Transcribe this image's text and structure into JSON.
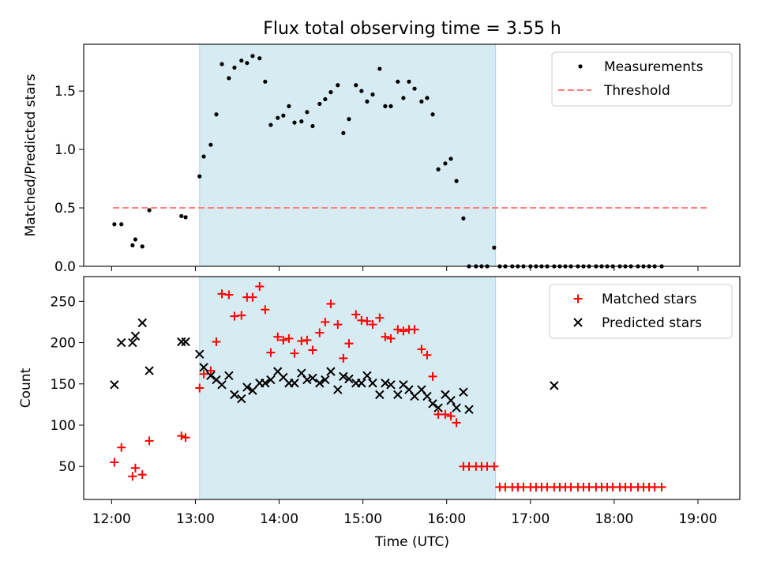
{
  "figure": {
    "title": "Flux total observing time = 3.55 h",
    "xlabel": "Time (UTC)",
    "x_ticks": [
      "12:00",
      "13:00",
      "14:00",
      "15:00",
      "16:00",
      "17:00",
      "18:00",
      "19:00"
    ],
    "highlight_color": "#add8e6",
    "highlight_x": [
      "13:03",
      "16:35"
    ]
  },
  "chart_data": [
    {
      "type": "scatter",
      "ylabel": "Matched/Predicted stars",
      "xlim": [
        "11:40",
        "19:30"
      ],
      "ylim": [
        0,
        1.9
      ],
      "y_ticks": [
        0.0,
        0.5,
        1.0,
        1.5
      ],
      "legend_position": "top-right",
      "series": [
        {
          "name": "Measurements",
          "kind": "dot",
          "color": "#000000",
          "points": [
            [
              "12:02",
              0.36
            ],
            [
              "12:07",
              0.36
            ],
            [
              "12:15",
              0.18
            ],
            [
              "12:17",
              0.23
            ],
            [
              "12:22",
              0.17
            ],
            [
              "12:27",
              0.48
            ],
            [
              "12:50",
              0.43
            ],
            [
              "12:53",
              0.42
            ],
            [
              "13:03",
              0.77
            ],
            [
              "13:06",
              0.94
            ],
            [
              "13:11",
              1.04
            ],
            [
              "13:15",
              1.3
            ],
            [
              "13:19",
              1.73
            ],
            [
              "13:24",
              1.61
            ],
            [
              "13:28",
              1.7
            ],
            [
              "13:33",
              1.76
            ],
            [
              "13:37",
              1.74
            ],
            [
              "13:41",
              1.8
            ],
            [
              "13:46",
              1.78
            ],
            [
              "13:50",
              1.58
            ],
            [
              "13:54",
              1.21
            ],
            [
              "13:59",
              1.27
            ],
            [
              "14:03",
              1.29
            ],
            [
              "14:07",
              1.37
            ],
            [
              "14:11",
              1.23
            ],
            [
              "14:16",
              1.24
            ],
            [
              "14:20",
              1.32
            ],
            [
              "14:24",
              1.2
            ],
            [
              "14:29",
              1.39
            ],
            [
              "14:33",
              1.43
            ],
            [
              "14:37",
              1.49
            ],
            [
              "14:42",
              1.55
            ],
            [
              "14:46",
              1.14
            ],
            [
              "14:50",
              1.26
            ],
            [
              "14:55",
              1.55
            ],
            [
              "14:59",
              1.5
            ],
            [
              "15:03",
              1.41
            ],
            [
              "15:07",
              1.47
            ],
            [
              "15:12",
              1.69
            ],
            [
              "15:16",
              1.37
            ],
            [
              "15:20",
              1.37
            ],
            [
              "15:25",
              1.58
            ],
            [
              "15:29",
              1.44
            ],
            [
              "15:33",
              1.58
            ],
            [
              "15:37",
              1.52
            ],
            [
              "15:42",
              1.41
            ],
            [
              "15:46",
              1.44
            ],
            [
              "15:50",
              1.3
            ],
            [
              "15:54",
              0.83
            ],
            [
              "15:59",
              0.88
            ],
            [
              "16:03",
              0.92
            ],
            [
              "16:07",
              0.73
            ],
            [
              "16:12",
              0.41
            ],
            [
              "16:16",
              0.0
            ],
            [
              "16:21",
              0.0
            ],
            [
              "16:25",
              0.0
            ],
            [
              "16:29",
              0.0
            ],
            [
              "16:34",
              0.16
            ],
            [
              "16:38",
              0.0
            ],
            [
              "16:42",
              0.0
            ],
            [
              "16:47",
              0.0
            ],
            [
              "16:51",
              0.0
            ],
            [
              "16:55",
              0.0
            ],
            [
              "17:00",
              0.0
            ],
            [
              "17:04",
              0.0
            ],
            [
              "17:08",
              0.0
            ],
            [
              "17:12",
              0.0
            ],
            [
              "17:17",
              0.0
            ],
            [
              "17:21",
              0.0
            ],
            [
              "17:25",
              0.0
            ],
            [
              "17:29",
              0.0
            ],
            [
              "17:34",
              0.0
            ],
            [
              "17:38",
              0.0
            ],
            [
              "17:42",
              0.0
            ],
            [
              "17:47",
              0.0
            ],
            [
              "17:51",
              0.0
            ],
            [
              "17:55",
              0.0
            ],
            [
              "17:59",
              0.0
            ],
            [
              "18:04",
              0.0
            ],
            [
              "18:08",
              0.0
            ],
            [
              "18:12",
              0.0
            ],
            [
              "18:17",
              0.0
            ],
            [
              "18:21",
              0.0
            ],
            [
              "18:25",
              0.0
            ],
            [
              "18:29",
              0.0
            ],
            [
              "18:34",
              0.0
            ]
          ]
        },
        {
          "name": "Threshold",
          "kind": "dashed-line",
          "color": "#ff7f7f",
          "points": [
            [
              "12:01",
              0.5
            ],
            [
              "19:08",
              0.5
            ]
          ]
        }
      ]
    },
    {
      "type": "scatter",
      "ylabel": "Count",
      "xlim": [
        "11:40",
        "19:30"
      ],
      "ylim": [
        10,
        280
      ],
      "y_ticks": [
        50,
        100,
        150,
        200,
        250
      ],
      "legend_position": "top-right",
      "series": [
        {
          "name": "Matched stars",
          "kind": "plus",
          "color": "#ff0000",
          "points": [
            [
              "12:02",
              55
            ],
            [
              "12:07",
              73
            ],
            [
              "12:15",
              38
            ],
            [
              "12:17",
              48
            ],
            [
              "12:22",
              40
            ],
            [
              "12:27",
              81
            ],
            [
              "12:50",
              87
            ],
            [
              "12:53",
              85
            ],
            [
              "13:03",
              145
            ],
            [
              "13:06",
              162
            ],
            [
              "13:11",
              166
            ],
            [
              "13:15",
              201
            ],
            [
              "13:19",
              259
            ],
            [
              "13:24",
              258
            ],
            [
              "13:28",
              232
            ],
            [
              "13:33",
              233
            ],
            [
              "13:37",
              255
            ],
            [
              "13:41",
              255
            ],
            [
              "13:46",
              268
            ],
            [
              "13:50",
              240
            ],
            [
              "13:54",
              188
            ],
            [
              "13:59",
              207
            ],
            [
              "14:03",
              203
            ],
            [
              "14:07",
              205
            ],
            [
              "14:11",
              187
            ],
            [
              "14:16",
              202
            ],
            [
              "14:20",
              203
            ],
            [
              "14:24",
              191
            ],
            [
              "14:29",
              212
            ],
            [
              "14:33",
              225
            ],
            [
              "14:37",
              247
            ],
            [
              "14:42",
              222
            ],
            [
              "14:46",
              181
            ],
            [
              "14:50",
              199
            ],
            [
              "14:55",
              234
            ],
            [
              "14:59",
              227
            ],
            [
              "15:03",
              226
            ],
            [
              "15:07",
              222
            ],
            [
              "15:12",
              230
            ],
            [
              "15:16",
              207
            ],
            [
              "15:20",
              205
            ],
            [
              "15:25",
              216
            ],
            [
              "15:29",
              214
            ],
            [
              "15:33",
              216
            ],
            [
              "15:37",
              216
            ],
            [
              "15:42",
              192
            ],
            [
              "15:46",
              185
            ],
            [
              "15:50",
              159
            ],
            [
              "15:54",
              113
            ],
            [
              "15:59",
              113
            ],
            [
              "16:03",
              111
            ],
            [
              "16:07",
              103
            ],
            [
              "16:12",
              50
            ],
            [
              "16:16",
              50
            ],
            [
              "16:21",
              50
            ],
            [
              "16:25",
              50
            ],
            [
              "16:29",
              50
            ],
            [
              "16:34",
              50
            ],
            [
              "16:38",
              25
            ],
            [
              "16:42",
              25
            ],
            [
              "16:47",
              25
            ],
            [
              "16:51",
              25
            ],
            [
              "16:55",
              25
            ],
            [
              "17:00",
              25
            ],
            [
              "17:04",
              25
            ],
            [
              "17:08",
              25
            ],
            [
              "17:12",
              25
            ],
            [
              "17:17",
              25
            ],
            [
              "17:21",
              25
            ],
            [
              "17:25",
              25
            ],
            [
              "17:29",
              25
            ],
            [
              "17:34",
              25
            ],
            [
              "17:38",
              25
            ],
            [
              "17:42",
              25
            ],
            [
              "17:47",
              25
            ],
            [
              "17:51",
              25
            ],
            [
              "17:55",
              25
            ],
            [
              "17:59",
              25
            ],
            [
              "18:04",
              25
            ],
            [
              "18:08",
              25
            ],
            [
              "18:12",
              25
            ],
            [
              "18:17",
              25
            ],
            [
              "18:21",
              25
            ],
            [
              "18:25",
              25
            ],
            [
              "18:29",
              25
            ],
            [
              "18:34",
              25
            ]
          ]
        },
        {
          "name": "Predicted stars",
          "kind": "x",
          "color": "#000000",
          "points": [
            [
              "12:02",
              149
            ],
            [
              "12:07",
              200
            ],
            [
              "12:15",
              200
            ],
            [
              "12:17",
              208
            ],
            [
              "12:22",
              224
            ],
            [
              "12:27",
              166
            ],
            [
              "12:50",
              201
            ],
            [
              "12:53",
              201
            ],
            [
              "13:03",
              186
            ],
            [
              "13:06",
              170
            ],
            [
              "13:11",
              160
            ],
            [
              "13:15",
              155
            ],
            [
              "13:19",
              149
            ],
            [
              "13:24",
              160
            ],
            [
              "13:28",
              137
            ],
            [
              "13:33",
              132
            ],
            [
              "13:37",
              146
            ],
            [
              "13:41",
              142
            ],
            [
              "13:46",
              151
            ],
            [
              "13:50",
              151
            ],
            [
              "13:54",
              155
            ],
            [
              "13:59",
              165
            ],
            [
              "14:03",
              158
            ],
            [
              "14:07",
              151
            ],
            [
              "14:11",
              151
            ],
            [
              "14:16",
              163
            ],
            [
              "14:20",
              155
            ],
            [
              "14:24",
              157
            ],
            [
              "14:29",
              151
            ],
            [
              "14:33",
              155
            ],
            [
              "14:37",
              165
            ],
            [
              "14:42",
              143
            ],
            [
              "14:46",
              159
            ],
            [
              "14:50",
              156
            ],
            [
              "14:55",
              151
            ],
            [
              "14:59",
              151
            ],
            [
              "15:03",
              160
            ],
            [
              "15:07",
              151
            ],
            [
              "15:12",
              137
            ],
            [
              "15:16",
              151
            ],
            [
              "15:20",
              149
            ],
            [
              "15:25",
              137
            ],
            [
              "15:29",
              149
            ],
            [
              "15:33",
              143
            ],
            [
              "15:37",
              135
            ],
            [
              "15:42",
              143
            ],
            [
              "15:46",
              135
            ],
            [
              "15:50",
              126
            ],
            [
              "15:54",
              121
            ],
            [
              "15:59",
              137
            ],
            [
              "16:03",
              130
            ],
            [
              "16:07",
              121
            ],
            [
              "16:12",
              140
            ],
            [
              "16:16",
              119
            ],
            [
              "17:17",
              148
            ]
          ]
        }
      ]
    }
  ]
}
